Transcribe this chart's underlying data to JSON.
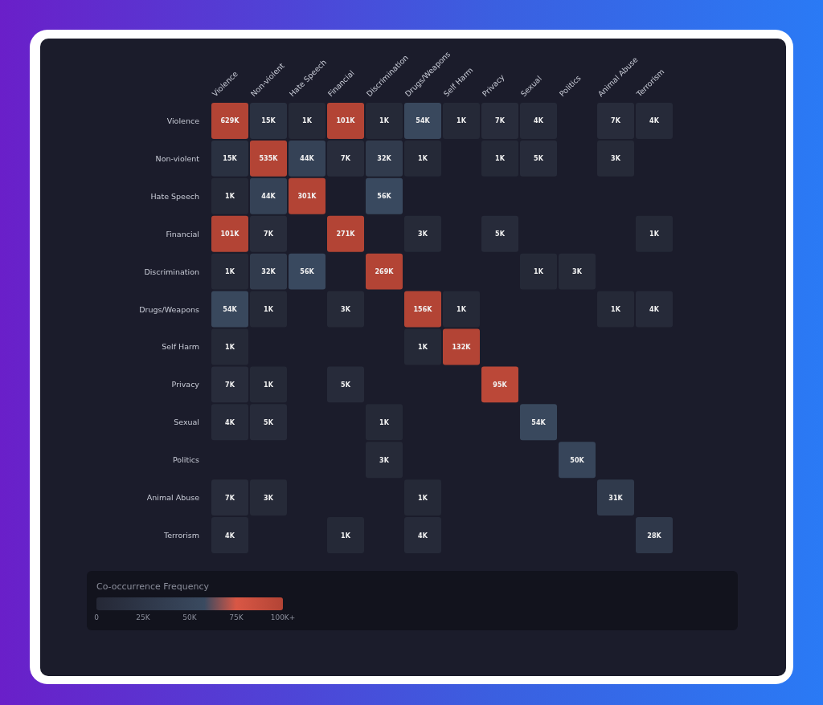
{
  "chart_data": {
    "type": "heatmap",
    "clabel": "Co-occurrence Frequency",
    "categories": [
      "Violence",
      "Non-violent",
      "Hate Speech",
      "Financial",
      "Discrimination",
      "Drugs/Weapons",
      "Self Harm",
      "Privacy",
      "Sexual",
      "Politics",
      "Animal Abuse",
      "Terrorism"
    ],
    "y_categories": [
      "Violence",
      "Non-violent",
      "Hate Speech",
      "Financial",
      "Discrimination",
      "Drugs/Weapons",
      "Self Harm",
      "Privacy",
      "Sexual",
      "Politics",
      "Animal Abuse",
      "Terrorism"
    ],
    "cells": [
      [
        629000,
        15000,
        1000,
        101000,
        1000,
        54000,
        1000,
        7000,
        4000,
        null,
        7000,
        4000
      ],
      [
        15000,
        535000,
        44000,
        7000,
        32000,
        1000,
        null,
        1000,
        5000,
        null,
        3000,
        null
      ],
      [
        1000,
        44000,
        301000,
        null,
        56000,
        null,
        null,
        null,
        null,
        null,
        null,
        null
      ],
      [
        101000,
        7000,
        null,
        271000,
        null,
        3000,
        null,
        5000,
        null,
        null,
        null,
        1000
      ],
      [
        1000,
        32000,
        56000,
        null,
        269000,
        null,
        null,
        null,
        1000,
        3000,
        null,
        null
      ],
      [
        54000,
        1000,
        null,
        3000,
        null,
        156000,
        1000,
        null,
        null,
        null,
        1000,
        4000
      ],
      [
        1000,
        null,
        null,
        null,
        null,
        1000,
        132000,
        null,
        null,
        null,
        null,
        null
      ],
      [
        7000,
        1000,
        null,
        5000,
        null,
        null,
        null,
        95000,
        null,
        null,
        null,
        null
      ],
      [
        4000,
        5000,
        null,
        null,
        1000,
        null,
        null,
        null,
        54000,
        null,
        null,
        null
      ],
      [
        null,
        null,
        null,
        null,
        3000,
        null,
        null,
        null,
        null,
        50000,
        null,
        null
      ],
      [
        7000,
        3000,
        null,
        null,
        null,
        1000,
        null,
        null,
        null,
        null,
        31000,
        null
      ],
      [
        4000,
        null,
        null,
        1000,
        null,
        4000,
        null,
        null,
        null,
        null,
        null,
        28000
      ]
    ],
    "cell_labels": [
      [
        "629K",
        "15K",
        "1K",
        "101K",
        "1K",
        "54K",
        "1K",
        "7K",
        "4K",
        null,
        "7K",
        "4K"
      ],
      [
        "15K",
        "535K",
        "44K",
        "7K",
        "32K",
        "1K",
        null,
        "1K",
        "5K",
        null,
        "3K",
        null
      ],
      [
        "1K",
        "44K",
        "301K",
        null,
        "56K",
        null,
        null,
        null,
        null,
        null,
        null,
        null
      ],
      [
        "101K",
        "7K",
        null,
        "271K",
        null,
        "3K",
        null,
        "5K",
        null,
        null,
        null,
        "1K"
      ],
      [
        "1K",
        "32K",
        "56K",
        null,
        "269K",
        null,
        null,
        null,
        "1K",
        "3K",
        null,
        null
      ],
      [
        "54K",
        "1K",
        null,
        "3K",
        null,
        "156K",
        "1K",
        null,
        null,
        null,
        "1K",
        "4K"
      ],
      [
        "1K",
        null,
        null,
        null,
        null,
        "1K",
        "132K",
        null,
        null,
        null,
        null,
        null
      ],
      [
        "7K",
        "1K",
        null,
        "5K",
        null,
        null,
        null,
        "95K",
        null,
        null,
        null,
        null
      ],
      [
        "4K",
        "5K",
        null,
        null,
        "1K",
        null,
        null,
        null,
        "54K",
        null,
        null,
        null
      ],
      [
        null,
        null,
        null,
        null,
        "3K",
        null,
        null,
        null,
        null,
        "50K",
        null,
        null
      ],
      [
        "7K",
        "3K",
        null,
        null,
        null,
        "1K",
        null,
        null,
        null,
        null,
        "31K",
        null
      ],
      [
        "4K",
        null,
        null,
        "1K",
        null,
        "4K",
        null,
        null,
        null,
        null,
        null,
        "28K"
      ]
    ],
    "clim": [
      0,
      100000
    ],
    "cticks": [
      0,
      {
        "value": 25000,
        "label": "25K"
      },
      {
        "value": 50000,
        "label": "50K"
      },
      {
        "value": 75000,
        "label": "75K"
      },
      {
        "value": 100000,
        "label": "100K+"
      }
    ]
  }
}
